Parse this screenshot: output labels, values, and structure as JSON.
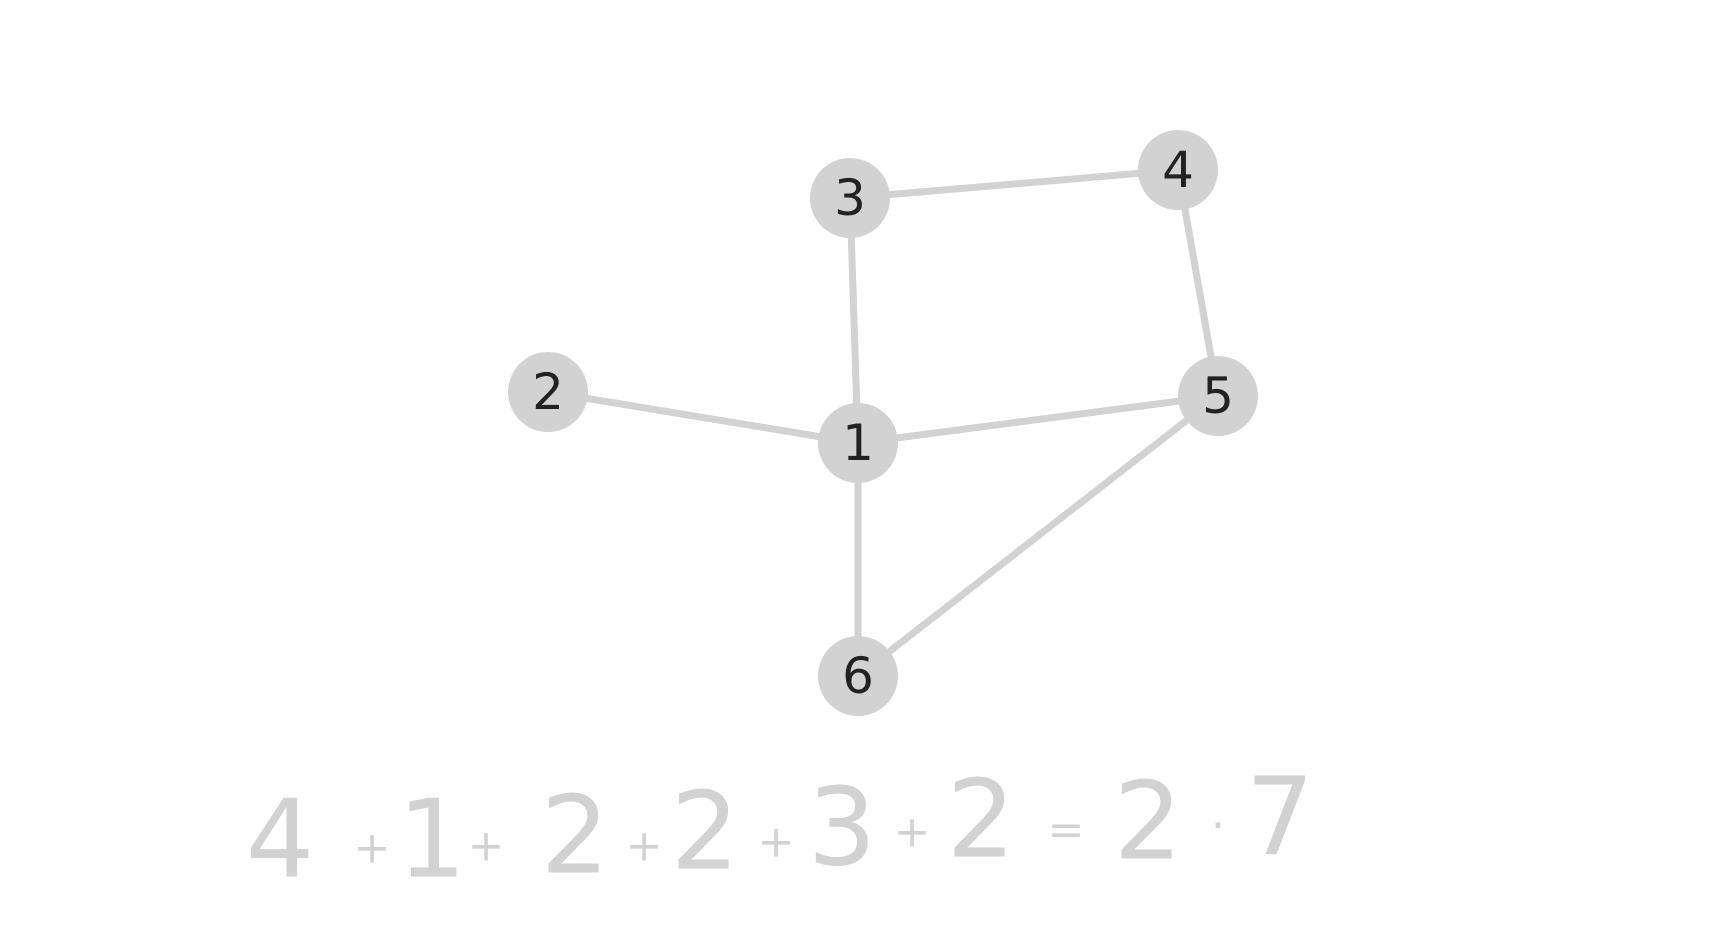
{
  "graph": {
    "nodes": [
      {
        "id": "1",
        "label": "1"
      },
      {
        "id": "2",
        "label": "2"
      },
      {
        "id": "3",
        "label": "3"
      },
      {
        "id": "4",
        "label": "4"
      },
      {
        "id": "5",
        "label": "5"
      },
      {
        "id": "6",
        "label": "6"
      }
    ],
    "edges": [
      {
        "from": "3",
        "to": "4"
      },
      {
        "from": "3",
        "to": "1"
      },
      {
        "from": "4",
        "to": "5"
      },
      {
        "from": "2",
        "to": "1"
      },
      {
        "from": "1",
        "to": "5"
      },
      {
        "from": "1",
        "to": "6"
      },
      {
        "from": "5",
        "to": "6"
      }
    ]
  },
  "equation": {
    "terms": {
      "t1": "4",
      "t2": "1",
      "t3": "2",
      "t4": "2",
      "t5": "3",
      "t6": "2",
      "r1": "2",
      "r2": "7"
    },
    "operators": {
      "plus": "+",
      "equals": "=",
      "times": "·"
    }
  },
  "colors": {
    "node_fill": "#d2d2d2",
    "edge": "#d2d2d2",
    "label": "#222222",
    "equation": "#d2d2d2"
  }
}
